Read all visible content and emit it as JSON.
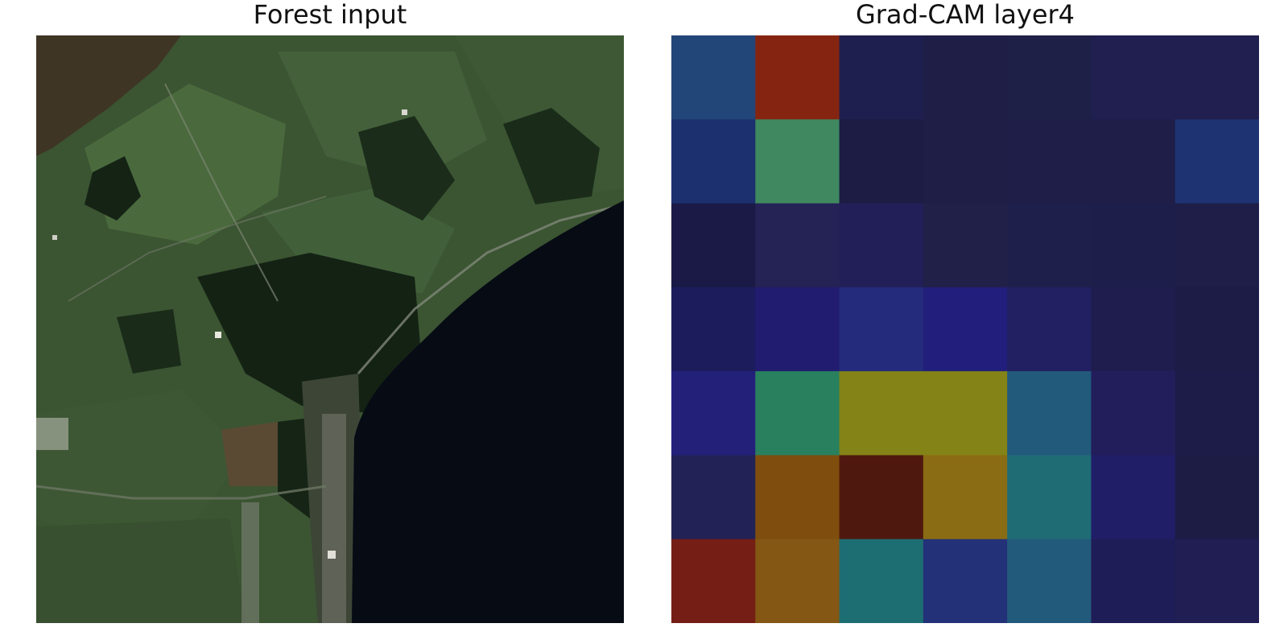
{
  "panels": {
    "left_title": "Forest input",
    "right_title": "Grad-CAM layer4"
  },
  "heatmap": {
    "rows": 7,
    "cols": 7,
    "cell_colors": [
      [
        "#234678",
        "#852511",
        "#1f1f4f",
        "#1e1e47",
        "#1f2047",
        "#201f50",
        "#201f4f"
      ],
      [
        "#1c2f6e",
        "#3f8860",
        "#1d1c44",
        "#1e1e46",
        "#1e1e48",
        "#1e1e48",
        "#1e3371"
      ],
      [
        "#1b1a46",
        "#252256",
        "#221f58",
        "#202048",
        "#1e1f4b",
        "#1e1e4a",
        "#1e1e48"
      ],
      [
        "#1c1c5c",
        "#211c6f",
        "#242a7c",
        "#211f7b",
        "#221f62",
        "#1f1d4d",
        "#1d1c47"
      ],
      [
        "#23207a",
        "#29805e",
        "#848317",
        "#848317",
        "#225a7c",
        "#221e5c",
        "#1d1c48"
      ],
      [
        "#232256",
        "#7f4e0e",
        "#4f180f",
        "#8a6c14",
        "#1f6c75",
        "#211e68",
        "#1d1c45"
      ],
      [
        "#741e15",
        "#845714",
        "#1d6e72",
        "#233278",
        "#225a7c",
        "#1f1d58",
        "#201e52"
      ]
    ]
  },
  "satellite": {
    "land_color": "#3a5432",
    "field_color": "#43603a",
    "forest_color": "#182718",
    "water_color": "#060b14",
    "town_color": "#8a8a80"
  }
}
